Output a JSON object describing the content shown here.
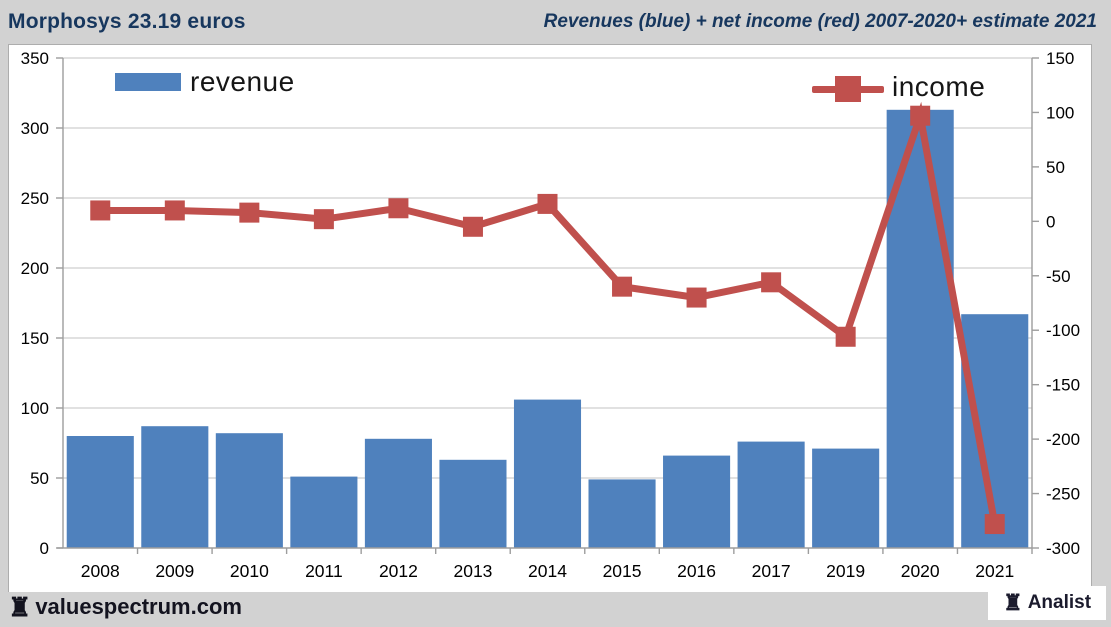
{
  "header": {
    "title_left": "Morphosys 23.19 euros",
    "title_right": "Revenues (blue) + net income (red) 2007-2020+ estimate 2021"
  },
  "footer": {
    "brand": "valuespectrum.com",
    "logo_label": "Analist",
    "rook_icon": "♜"
  },
  "colors": {
    "page_bg": "#d2d2d2",
    "canvas_bg": "#ffffff",
    "grid": "#c3c3c3",
    "axis": "#9d9d9d",
    "revenue_bar": "#4f81bd",
    "income_line": "#c0504d",
    "header_text": "#17375e",
    "axis_label": "#000000"
  },
  "chart_data": {
    "type": "bar+line",
    "title": "Morphosys revenues and net income 2007-2020 + estimate 2021 (millions of euros)",
    "categories": [
      "2008",
      "2009",
      "2010",
      "2011",
      "2012",
      "2013",
      "2014",
      "2015",
      "2016",
      "2017",
      "2019",
      "2020",
      "2021"
    ],
    "series": [
      {
        "name": "revenue",
        "type": "bar",
        "axis": "left",
        "color": "#4f81bd",
        "values": [
          80,
          87,
          82,
          51,
          78,
          63,
          106,
          49,
          66,
          76,
          71,
          313,
          167
        ]
      },
      {
        "name": "income",
        "type": "line",
        "axis": "right",
        "color": "#c0504d",
        "values": [
          10,
          10,
          8,
          2,
          12,
          -5,
          16,
          -60,
          -70,
          -56,
          -106,
          97,
          -278
        ]
      }
    ],
    "left_axis": {
      "min": 0,
      "max": 350,
      "tick_step": 50,
      "tick_labels": [
        "350",
        "300",
        "250",
        "200",
        "150",
        "100",
        "50",
        "0"
      ]
    },
    "right_axis": {
      "min": -300,
      "max": 150,
      "tick_step": 50,
      "tick_labels": [
        "150",
        "100",
        "50",
        "0",
        "-50",
        "-100",
        "-150",
        "-200",
        "-250",
        "-300"
      ]
    },
    "grid": true,
    "legend": {
      "revenue": "revenue",
      "income": "income"
    },
    "legend_position": "top-inside"
  }
}
